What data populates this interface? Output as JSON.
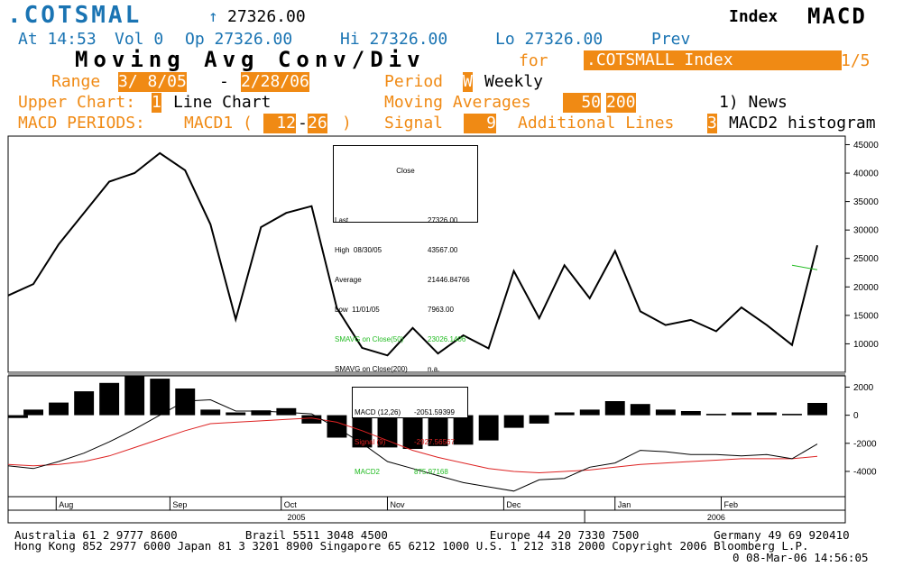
{
  "header": {
    "ticker": ".COTSMAL",
    "arrow": "↑",
    "last_price": "27326.00",
    "index_label": "Index",
    "study": "MACD",
    "line2": {
      "time": "At 14:53",
      "vol": "Vol 0",
      "op": "Op 27326.00",
      "hi": "Hi 27326.00",
      "lo": "Lo 27326.00",
      "prev": "Prev"
    },
    "title": "Moving Avg Conv/Div",
    "for_label": "for",
    "security": ".COTSMALL Index",
    "page": "1/5"
  },
  "settings": {
    "range_label": "Range",
    "range_start": "3/ 8/05",
    "range_dash": "-",
    "range_end": "2/28/06",
    "period_label": "Period",
    "period_code": "W",
    "period_value": "Weekly",
    "upper_label": "Upper Chart:",
    "upper_code": "1",
    "upper_value": "Line Chart",
    "ma_label": "Moving Averages",
    "ma1": "50",
    "ma2": "200",
    "news": "1) News",
    "macd_periods_label": "MACD PERIODS:",
    "macd1_label": "MACD1 (",
    "macd_fast": "12",
    "macd_dash": "-",
    "macd_slow": "26",
    "macd_close": ")",
    "signal_label": "Signal",
    "signal_value": "9",
    "addl_label": "Additional Lines",
    "addl_code": "3",
    "addl_value": "MACD2 histogram"
  },
  "legend_upper": {
    "title": "Close",
    "rows": [
      {
        "label": "Last",
        "value": "27326.00",
        "color": "#000000"
      },
      {
        "label": "High  08/30/05",
        "value": "43567.00",
        "color": "#000000"
      },
      {
        "label": "Average",
        "value": "21446.84766",
        "color": "#000000"
      },
      {
        "label": "Low  11/01/05",
        "value": "7963.00",
        "color": "#000000"
      },
      {
        "label": "SMAVG on Close(50)",
        "value": "23026.1406",
        "color": "#22bb22"
      },
      {
        "label": "SMAVG on Close(200)",
        "value": "n.a.",
        "color": "#000000"
      }
    ]
  },
  "legend_lower": {
    "rows": [
      {
        "label": "MACD (12,26)",
        "value": "-2051.59399",
        "color": "#000000"
      },
      {
        "label": "Signal (9)",
        "value": "-2927.56567",
        "color": "#dd2222"
      },
      {
        "label": "MACD2",
        "value": "875.97168",
        "color": "#22bb22"
      }
    ]
  },
  "footer": {
    "line1": "Australia 61 2 9777 8600          Brazil 5511 3048 4500               Europe 44 20 7330 7500           Germany 49 69 920410",
    "line2": "Hong Kong 852 2977 6000 Japan 81 3 3201 8900 Singapore 65 6212 1000 U.S. 1 212 318 2000 Copyright 2006 Bloomberg L.P.",
    "line3": "0 08-Mar-06 14:56:05"
  },
  "chart_data": {
    "type": "line",
    "upper": {
      "ylim": [
        5000,
        46500
      ],
      "yticks": [
        10000,
        15000,
        20000,
        25000,
        30000,
        35000,
        40000,
        45000
      ],
      "close": [
        18500,
        20500,
        27500,
        33000,
        38500,
        40000,
        43500,
        40500,
        31000,
        14300,
        30500,
        33000,
        34200,
        16300,
        9300,
        7963,
        12800,
        8300,
        11500,
        9200,
        22800,
        14500,
        23800,
        18000,
        26300,
        15700,
        13300,
        14200,
        12200,
        16400,
        13300,
        9800,
        27326
      ],
      "sma50_segment": {
        "x_index": [
          31,
          32
        ],
        "values": [
          23800,
          23026
        ]
      }
    },
    "lower": {
      "ylim": [
        -5800,
        2800
      ],
      "yticks": [
        2000,
        0,
        -2000,
        -4000
      ],
      "macd": [
        -3600,
        -3800,
        -3300,
        -2700,
        -1900,
        -1000,
        0,
        1000,
        1100,
        300,
        300,
        200,
        100,
        -900,
        -2000,
        -3300,
        -3800,
        -4300,
        -4800,
        -5100,
        -5400,
        -4600,
        -4500,
        -3700,
        -3400,
        -2500,
        -2600,
        -2800,
        -2800,
        -2900,
        -2800,
        -3100,
        -2051
      ],
      "signal": [
        -3500,
        -3600,
        -3500,
        -3300,
        -2900,
        -2300,
        -1700,
        -1100,
        -600,
        -500,
        -400,
        -300,
        -200,
        -500,
        -1100,
        -1800,
        -2500,
        -3000,
        -3400,
        -3800,
        -4000,
        -4100,
        -4000,
        -3900,
        -3700,
        -3500,
        -3400,
        -3300,
        -3200,
        -3100,
        -3100,
        -3100,
        -2927
      ],
      "macd2": [
        -200,
        400,
        900,
        1700,
        2300,
        2800,
        2600,
        1900,
        400,
        200,
        350,
        500,
        -600,
        -1600,
        -2300,
        -2300,
        -2400,
        -2200,
        -2100,
        -1800,
        -900,
        -600,
        200,
        400,
        1000,
        800,
        400,
        300,
        100,
        200,
        200,
        100,
        876
      ]
    },
    "x_month_labels": [
      {
        "label": "Aug",
        "index": 1.9
      },
      {
        "label": "Sep",
        "index": 6.4
      },
      {
        "label": "Oct",
        "index": 10.8
      },
      {
        "label": "Nov",
        "index": 15.0
      },
      {
        "label": "Dec",
        "index": 19.6
      },
      {
        "label": "Jan",
        "index": 24.0
      },
      {
        "label": "Feb",
        "index": 28.2
      }
    ],
    "x_year_labels": [
      {
        "label": "2005",
        "index": 11.4
      },
      {
        "label": "2006",
        "index": 28.0
      }
    ],
    "year_divider_index": 22.8,
    "colors": {
      "close": "#000000",
      "macd": "#000000",
      "signal": "#dd2222",
      "sma50": "#22bb22",
      "hist": "#000000"
    }
  }
}
